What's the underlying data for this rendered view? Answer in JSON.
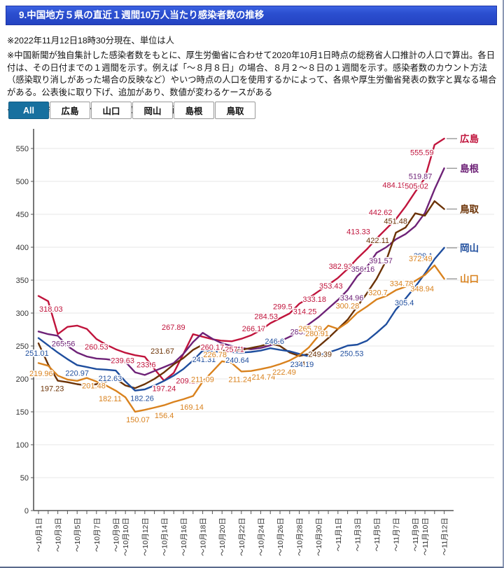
{
  "header": {
    "title": "9.中国地方５県の直近１週間10万人当たり感染者数の推移"
  },
  "notes": [
    "※2022年11月12日18時30分現在、単位は人",
    "※中国新聞が独自集計した感染者数をもとに、厚生労働省に合わせて2020年10月1日時点の総務省人口推計の人口で算出。各日付は、その日付までの１週間を示す。例えば「～８月８日」の場合、８月２～８日の１週間を示す。感染者数のカウント方法（感染取り消しがあった場合の反映など）やいつ時点の人口を使用するかによって、各県や厚生労働省発表の数字と異なる場合がある。公表後に取り下げ、追加があり、数値が変わるケースがある",
    "※下の県名等のボタンクリックでグラフ表示切り替え"
  ],
  "buttons": [
    {
      "label": "All",
      "active": true
    },
    {
      "label": "広島",
      "active": false
    },
    {
      "label": "山口",
      "active": false
    },
    {
      "label": "岡山",
      "active": false
    },
    {
      "label": "島根",
      "active": false
    },
    {
      "label": "鳥取",
      "active": false
    }
  ],
  "chart_data": {
    "type": "line",
    "grid": true,
    "legend_position": "right",
    "ylim": [
      0,
      570
    ],
    "y_ticks": [
      0,
      50,
      100,
      150,
      200,
      250,
      300,
      350,
      400,
      450,
      500,
      550
    ],
    "x_labels": [
      "～10月1日",
      "～10月3日",
      "～10月5日",
      "～10月7日",
      "～10月9日",
      "～10月10日",
      "～10月12日",
      "～10月14日",
      "～10月16日",
      "～10月18日",
      "～10月20日",
      "～10月22日",
      "～10月24日",
      "～10月26日",
      "～10月28日",
      "～10月30日",
      "～11月1日",
      "～11月3日",
      "～11月5日",
      "～11月7日",
      "～11月9日",
      "～11月10日",
      "～11月12日"
    ],
    "x_label_days": [
      0,
      2,
      4,
      6,
      8,
      9,
      11,
      13,
      15,
      17,
      19,
      21,
      23,
      25,
      27,
      29,
      31,
      33,
      35,
      37,
      39,
      40,
      42
    ],
    "n_days": 43,
    "series": [
      {
        "name": "広島",
        "id": "hiroshima",
        "color": "#c0143c",
        "values": [
          326,
          318.03,
          268,
          279,
          281,
          276,
          260.53,
          252,
          245,
          239.63,
          236,
          233.6,
          215,
          197.24,
          209.17,
          238,
          267.89,
          264,
          260.17,
          258,
          257.1,
          261,
          266.17,
          274,
          284.53,
          292,
          299.5,
          314.25,
          323,
          333.18,
          343,
          353.43,
          367,
          382.93,
          397,
          413.33,
          428,
          442.62,
          462,
          484.19,
          505.02,
          555.59,
          565
        ]
      },
      {
        "name": "島根",
        "id": "shimane",
        "color": "#6e2277",
        "values": [
          272,
          268,
          265.56,
          250,
          240,
          234,
          231,
          230,
          228,
          226,
          210,
          206,
          212,
          218,
          224,
          238,
          256,
          270,
          261,
          254,
          250,
          247,
          245,
          247,
          251,
          257,
          264,
          272,
          283.26,
          294,
          307,
          320,
          334.96,
          356.16,
          370,
          391.57,
          400,
          412,
          420,
          432,
          452,
          488,
          519.87
        ]
      },
      {
        "name": "鳥取",
        "id": "tottori",
        "color": "#6b3205",
        "values": [
          254,
          222,
          197.23,
          195,
          192,
          190,
          192,
          196,
          200,
          190,
          186,
          192,
          200,
          210,
          222,
          231.67,
          244,
          252,
          246,
          243,
          242,
          244,
          247,
          250,
          254,
          250,
          240,
          234.8,
          238,
          249.39,
          262,
          276,
          290,
          310,
          330,
          352,
          380,
          422.11,
          430,
          451.48,
          448,
          470,
          458
        ]
      },
      {
        "name": "岡山",
        "id": "okayama",
        "color": "#1f4e9e",
        "values": [
          262,
          251.01,
          240,
          230,
          220.97,
          218,
          215,
          214,
          212.63,
          196,
          182.26,
          184,
          190,
          197,
          205,
          215,
          228,
          243,
          241.31,
          241,
          240.64,
          240,
          241,
          243,
          246.6,
          244,
          242,
          238,
          234.19,
          236,
          240,
          245,
          250.53,
          252,
          258,
          270,
          283,
          305.4,
          322,
          340,
          360,
          382,
          399.1
        ]
      },
      {
        "name": "山口",
        "id": "yamaguchi",
        "color": "#d9821e",
        "values": [
          224,
          219.96,
          205,
          199,
          197,
          201.48,
          196,
          190,
          182.11,
          172,
          150.07,
          153,
          156.4,
          160,
          165,
          169.14,
          174,
          196,
          211.09,
          226.78,
          224,
          211.24,
          212,
          214.74,
          218,
          222.49,
          228,
          236,
          248,
          265.79,
          280.91,
          276,
          286,
          300.28,
          310,
          320.7,
          326,
          334.78,
          340,
          348.94,
          358,
          372.49,
          352
        ]
      }
    ],
    "point_labels": [
      {
        "s": 0,
        "d": 1,
        "t": "318.03",
        "dx": 4,
        "p": "b"
      },
      {
        "s": 0,
        "d": 6,
        "t": "260.53",
        "dx": 0,
        "p": "b"
      },
      {
        "s": 0,
        "d": 9,
        "t": "239.63",
        "dx": -4,
        "p": "b"
      },
      {
        "s": 0,
        "d": 11,
        "t": "233.6",
        "dx": 2,
        "p": "b"
      },
      {
        "s": 0,
        "d": 13,
        "t": "197.24",
        "dx": 0,
        "p": "b"
      },
      {
        "s": 0,
        "d": 14,
        "t": "209.17",
        "dx": 20,
        "p": "b"
      },
      {
        "s": 0,
        "d": 16,
        "t": "267.89",
        "dx": -28,
        "p": "a"
      },
      {
        "s": 0,
        "d": 18,
        "t": "260.17",
        "dx": 0,
        "p": "b"
      },
      {
        "s": 0,
        "d": 20,
        "t": "257.1",
        "dx": 4,
        "p": "b"
      },
      {
        "s": 0,
        "d": 22,
        "t": "266.17",
        "dx": 4,
        "p": "a"
      },
      {
        "s": 0,
        "d": 24,
        "t": "284.53",
        "dx": -6,
        "p": "a"
      },
      {
        "s": 0,
        "d": 26,
        "t": "299.5",
        "dx": -10,
        "p": "a"
      },
      {
        "s": 0,
        "d": 27,
        "t": "314.25",
        "dx": 8,
        "p": "b"
      },
      {
        "s": 0,
        "d": 29,
        "t": "333.18",
        "dx": -6,
        "p": "b"
      },
      {
        "s": 0,
        "d": 31,
        "t": "353.43",
        "dx": -10,
        "p": "b"
      },
      {
        "s": 0,
        "d": 33,
        "t": "382.93",
        "dx": -24,
        "p": "b"
      },
      {
        "s": 0,
        "d": 35,
        "t": "413.33",
        "dx": -26,
        "p": "a"
      },
      {
        "s": 0,
        "d": 37,
        "t": "442.62",
        "dx": -22,
        "p": "a"
      },
      {
        "s": 0,
        "d": 39,
        "t": "484.19",
        "dx": -30,
        "p": "a"
      },
      {
        "s": 0,
        "d": 40,
        "t": "505.02",
        "dx": -12,
        "p": "b"
      },
      {
        "s": 0,
        "d": 41,
        "t": "555.59",
        "dx": -18,
        "p": "b"
      },
      {
        "s": 1,
        "d": 2,
        "t": "265.56",
        "dx": 8,
        "p": "b"
      },
      {
        "s": 1,
        "d": 28,
        "t": "283.26",
        "dx": -10,
        "p": "b"
      },
      {
        "s": 1,
        "d": 32,
        "t": "334.96",
        "dx": 6,
        "p": "b"
      },
      {
        "s": 1,
        "d": 33,
        "t": "356.16",
        "dx": 8,
        "p": "a"
      },
      {
        "s": 1,
        "d": 35,
        "t": "391.57",
        "dx": 6,
        "p": "b"
      },
      {
        "s": 1,
        "d": 42,
        "t": "519.87",
        "dx": -34,
        "p": "b"
      },
      {
        "s": 2,
        "d": 2,
        "t": "197.23",
        "dx": -8,
        "p": "b"
      },
      {
        "s": 2,
        "d": 15,
        "t": "231.67",
        "dx": -30,
        "p": "a"
      },
      {
        "s": 2,
        "d": 27,
        "t": "234.8",
        "dx": 4,
        "p": "b"
      },
      {
        "s": 2,
        "d": 29,
        "t": "249.39",
        "dx": 2,
        "p": "b"
      },
      {
        "s": 2,
        "d": 37,
        "t": "422.11",
        "dx": -26,
        "p": "b"
      },
      {
        "s": 2,
        "d": 39,
        "t": "451.48",
        "dx": -28,
        "p": "b"
      },
      {
        "s": 3,
        "d": 1,
        "t": "251.01",
        "dx": -16,
        "p": "b"
      },
      {
        "s": 3,
        "d": 4,
        "t": "220.97",
        "dx": 0,
        "p": "b"
      },
      {
        "s": 3,
        "d": 8,
        "t": "212.63",
        "dx": -8,
        "p": "b"
      },
      {
        "s": 3,
        "d": 10,
        "t": "182.26",
        "dx": 10,
        "p": "b"
      },
      {
        "s": 3,
        "d": 18,
        "t": "241.31",
        "dx": -12,
        "p": "b"
      },
      {
        "s": 3,
        "d": 20,
        "t": "240.64",
        "dx": 8,
        "p": "b"
      },
      {
        "s": 3,
        "d": 24,
        "t": "246.6",
        "dx": 6,
        "p": "a"
      },
      {
        "s": 3,
        "d": 28,
        "t": "234.19",
        "dx": -10,
        "p": "b"
      },
      {
        "s": 3,
        "d": 32,
        "t": "250.53",
        "dx": 6,
        "p": "b"
      },
      {
        "s": 3,
        "d": 37,
        "t": "305.4",
        "dx": 12,
        "p": "a"
      },
      {
        "s": 3,
        "d": 42,
        "t": "399.1",
        "dx": -30,
        "p": "b"
      },
      {
        "s": 4,
        "d": 1,
        "t": "219.96",
        "dx": -10,
        "p": "b"
      },
      {
        "s": 4,
        "d": 5,
        "t": "201.48",
        "dx": 10,
        "p": "b"
      },
      {
        "s": 4,
        "d": 8,
        "t": "182.11",
        "dx": -8,
        "p": "b"
      },
      {
        "s": 4,
        "d": 10,
        "t": "150.07",
        "dx": 4,
        "p": "b"
      },
      {
        "s": 4,
        "d": 12,
        "t": "156.4",
        "dx": 14,
        "p": "b"
      },
      {
        "s": 4,
        "d": 15,
        "t": "169.14",
        "dx": 12,
        "p": "b"
      },
      {
        "s": 4,
        "d": 18,
        "t": "211.09",
        "dx": -14,
        "p": "b"
      },
      {
        "s": 4,
        "d": 19,
        "t": "226.78",
        "dx": -10,
        "p": "a"
      },
      {
        "s": 4,
        "d": 21,
        "t": "211.24",
        "dx": -2,
        "p": "b"
      },
      {
        "s": 4,
        "d": 23,
        "t": "214.74",
        "dx": 4,
        "p": "b"
      },
      {
        "s": 4,
        "d": 25,
        "t": "222.49",
        "dx": 6,
        "p": "b"
      },
      {
        "s": 4,
        "d": 29,
        "t": "265.79",
        "dx": -12,
        "p": "a"
      },
      {
        "s": 4,
        "d": 30,
        "t": "280.91",
        "dx": -16,
        "p": "b"
      },
      {
        "s": 4,
        "d": 33,
        "t": "300.28",
        "dx": -14,
        "p": "a"
      },
      {
        "s": 4,
        "d": 35,
        "t": "320.7",
        "dx": 2,
        "p": "a"
      },
      {
        "s": 4,
        "d": 37,
        "t": "334.78",
        "dx": 8,
        "p": "a"
      },
      {
        "s": 4,
        "d": 39,
        "t": "348.94",
        "dx": 10,
        "p": "b"
      },
      {
        "s": 4,
        "d": 41,
        "t": "372.49",
        "dx": -20,
        "p": "a"
      }
    ]
  }
}
